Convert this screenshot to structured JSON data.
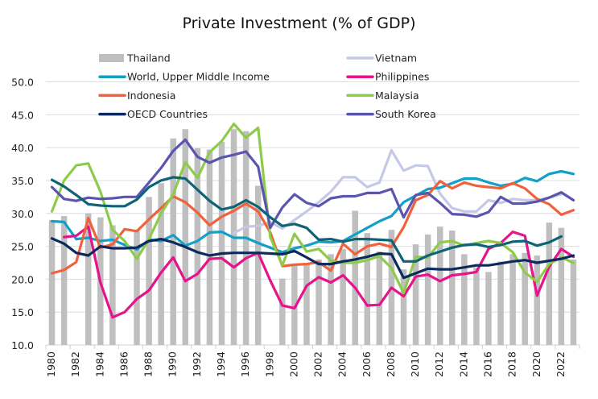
{
  "chart_data": {
    "type": "bar+line",
    "title": "Private Investment (% of GDP)",
    "xlabel": "",
    "ylabel": "",
    "ylim": [
      10,
      50
    ],
    "yticks": [
      "10.0",
      "15.0",
      "20.0",
      "25.0",
      "30.0",
      "35.0",
      "40.0",
      "45.0",
      "50.0"
    ],
    "grid": true,
    "legend_position": "top",
    "categories": [
      1980,
      1981,
      1982,
      1983,
      1984,
      1985,
      1986,
      1987,
      1988,
      1989,
      1990,
      1991,
      1992,
      1993,
      1994,
      1995,
      1996,
      1997,
      1998,
      1999,
      2000,
      2001,
      2002,
      2003,
      2004,
      2005,
      2006,
      2007,
      2008,
      2009,
      2010,
      2011,
      2012,
      2013,
      2014,
      2015,
      2016,
      2017,
      2018,
      2019,
      2020,
      2021,
      2022,
      2023
    ],
    "xtick_labels": [
      "1980",
      "1982",
      "1984",
      "1986",
      "1988",
      "1990",
      "1992",
      "1994",
      "1996",
      "1998",
      "2000",
      "2002",
      "2004",
      "2006",
      "2008",
      "2010",
      "2012",
      "2014",
      "2016",
      "2018",
      "2020",
      "2022"
    ],
    "series": [
      {
        "name": "Thailand",
        "kind": "bar",
        "color": "#bfbfbf",
        "values": [
          29.0,
          29.6,
          null,
          30.0,
          29.4,
          28.2,
          null,
          27.5,
          32.5,
          34.6,
          41.4,
          42.8,
          39.9,
          39.7,
          40.9,
          42.8,
          42.5,
          34.2,
          null,
          20.1,
          22.0,
          22.3,
          23.0,
          23.8,
          24.6,
          30.4,
          27.0,
          24.2,
          27.5,
          21.5,
          25.3,
          26.8,
          28.0,
          27.4,
          23.8,
          21.8,
          21.1,
          22.7,
          23.8,
          24.0,
          23.6,
          28.6,
          27.8,
          23.0
        ]
      },
      {
        "name": "Vietnam",
        "kind": "line",
        "color": "#c5c8e6",
        "values": [
          null,
          null,
          null,
          null,
          null,
          null,
          null,
          null,
          null,
          null,
          null,
          null,
          null,
          null,
          null,
          27.0,
          28.0,
          28.1,
          28.7,
          27.7,
          29.0,
          30.3,
          31.7,
          33.3,
          35.5,
          35.5,
          34.0,
          34.7,
          39.6,
          36.5,
          37.3,
          37.2,
          33.0,
          30.8,
          30.3,
          30.3,
          32.0,
          31.6,
          32.2,
          32.0,
          32.0,
          32.4,
          32.9,
          null
        ]
      },
      {
        "name": "World, Upper Middle Income",
        "kind": "line",
        "color": "#12a0c8",
        "values": [
          28.8,
          28.7,
          26.1,
          26.3,
          25.8,
          26.0,
          25.2,
          24.5,
          26.0,
          25.8,
          26.7,
          25.1,
          25.8,
          27.1,
          27.2,
          26.3,
          26.3,
          25.5,
          24.8,
          24.1,
          24.7,
          25.1,
          25.7,
          25.6,
          25.8,
          26.8,
          27.8,
          28.8,
          29.6,
          31.7,
          32.7,
          33.7,
          33.9,
          34.6,
          35.3,
          35.3,
          34.7,
          34.2,
          34.5,
          35.4,
          34.9,
          36.0,
          36.4,
          36.0
        ]
      },
      {
        "name": "Philippines",
        "kind": "line",
        "color": "#e6138c",
        "values": [
          null,
          26.4,
          26.6,
          28.0,
          19.5,
          14.2,
          15.0,
          17.0,
          18.3,
          21.0,
          23.3,
          19.7,
          20.8,
          23.1,
          23.2,
          21.8,
          23.2,
          24.0,
          19.8,
          16.0,
          15.6,
          19.0,
          20.3,
          19.5,
          20.6,
          18.7,
          16.0,
          16.1,
          18.7,
          17.4,
          20.4,
          20.7,
          19.7,
          20.6,
          20.8,
          21.1,
          24.6,
          25.5,
          27.2,
          26.6,
          17.5,
          21.9,
          24.6,
          23.4
        ]
      },
      {
        "name": "Indonesia",
        "kind": "line",
        "color": "#f0623c",
        "values": [
          20.9,
          21.4,
          22.6,
          29.3,
          24.8,
          25.3,
          27.6,
          27.3,
          29.1,
          30.8,
          32.6,
          31.7,
          30.1,
          28.2,
          29.5,
          30.4,
          31.5,
          30.3,
          27.1,
          22.0,
          22.2,
          22.3,
          22.6,
          21.3,
          25.4,
          23.8,
          25.0,
          25.4,
          24.9,
          27.9,
          32.0,
          32.8,
          34.9,
          33.8,
          34.7,
          34.2,
          34.0,
          33.8,
          34.6,
          33.8,
          32.2,
          31.4,
          29.8,
          30.5
        ]
      },
      {
        "name": "Malaysia",
        "kind": "line",
        "color": "#8dcb4a",
        "values": [
          30.3,
          35.0,
          37.3,
          37.6,
          33.3,
          27.5,
          25.8,
          23.1,
          26.1,
          30.0,
          32.9,
          37.8,
          35.4,
          39.3,
          41.0,
          43.6,
          41.5,
          43.0,
          26.4,
          22.1,
          26.9,
          24.2,
          24.6,
          22.8,
          22.5,
          22.5,
          22.9,
          23.5,
          21.7,
          17.9,
          23.4,
          23.3,
          25.6,
          25.8,
          25.1,
          25.5,
          25.8,
          25.5,
          24.1,
          21.0,
          19.6,
          22.3,
          23.3,
          22.5
        ]
      },
      {
        "name": "OECD Countries",
        "kind": "line",
        "color": "#0c2a5e",
        "values": [
          26.2,
          25.4,
          24.0,
          23.6,
          25.0,
          24.7,
          24.7,
          24.8,
          25.8,
          26.1,
          25.6,
          24.9,
          24.1,
          23.6,
          23.9,
          24.0,
          24.0,
          24.0,
          23.9,
          23.8,
          24.3,
          23.3,
          22.3,
          22.3,
          22.7,
          23.0,
          23.4,
          23.9,
          23.8,
          20.2,
          20.9,
          21.6,
          21.5,
          21.5,
          21.8,
          22.1,
          22.1,
          22.4,
          22.7,
          22.9,
          22.5,
          22.8,
          23.1,
          23.6
        ]
      },
      {
        "name": "South Korea",
        "kind": "line",
        "color": "#5b55b0",
        "values": [
          34.0,
          32.2,
          31.9,
          32.4,
          32.2,
          32.3,
          32.5,
          32.5,
          34.7,
          36.9,
          39.5,
          41.2,
          38.6,
          37.7,
          38.5,
          38.9,
          39.4,
          37.1,
          27.8,
          30.9,
          32.9,
          31.6,
          31.1,
          32.3,
          32.6,
          32.6,
          33.1,
          33.1,
          33.7,
          29.4,
          32.8,
          33.1,
          31.6,
          29.9,
          29.8,
          29.5,
          30.2,
          32.5,
          31.5,
          31.5,
          31.8,
          32.4,
          33.2,
          32.0
        ]
      },
      {
        "name": "",
        "kind": "line",
        "color": "#0f6377",
        "values": [
          35.1,
          34.1,
          32.8,
          31.4,
          31.2,
          31.1,
          31.1,
          32.1,
          34.0,
          35.0,
          35.5,
          35.3,
          33.6,
          31.9,
          30.6,
          31.0,
          32.0,
          31.0,
          29.4,
          28.1,
          28.4,
          27.8,
          26.0,
          26.1,
          25.7,
          26.1,
          26.1,
          26.0,
          25.9,
          22.7,
          22.7,
          23.6,
          24.2,
          24.8,
          25.2,
          25.3,
          24.9,
          25.2,
          25.7,
          25.8,
          25.1,
          25.6,
          26.5,
          null
        ]
      }
    ]
  }
}
